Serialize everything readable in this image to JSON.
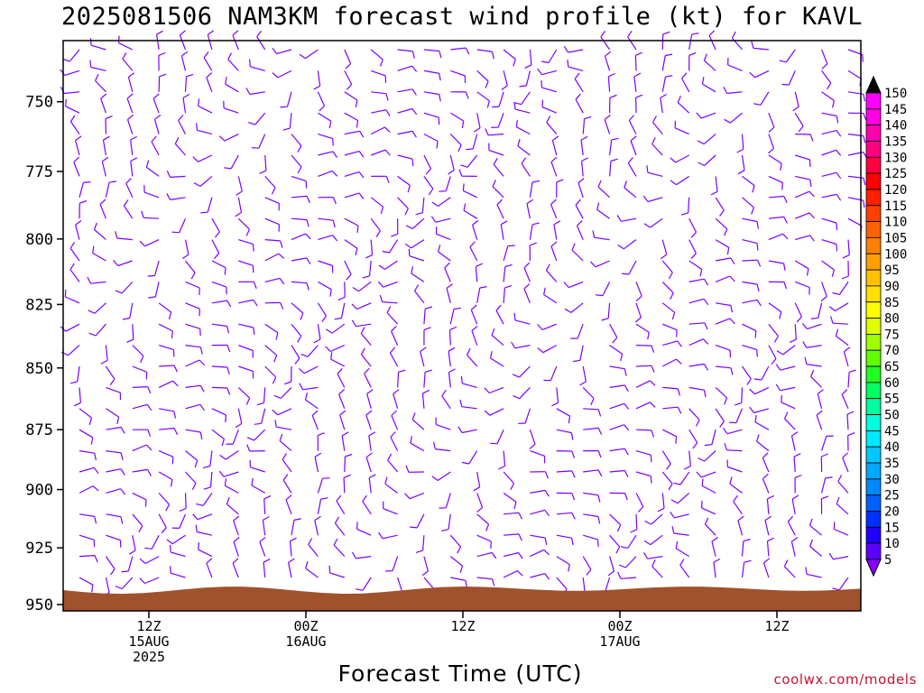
{
  "chart_data": {
    "type": "wind-barb-profile",
    "title": "2025081506 NAM3KM forecast wind profile (kt) for KAVL",
    "xlabel": "Forecast Time (UTC)",
    "ylabel": "",
    "credit": "coolwx.com/models",
    "y_axis": {
      "ticks": [
        750,
        775,
        800,
        825,
        850,
        875,
        900,
        925,
        950
      ],
      "range": [
        730,
        950
      ],
      "scale": "log-pressure",
      "inverted": true
    },
    "x_axis": {
      "ticks": [
        {
          "hour": 6,
          "lines": [
            "12Z",
            "15AUG",
            "2025"
          ]
        },
        {
          "hour": 18,
          "lines": [
            "00Z",
            "16AUG"
          ]
        },
        {
          "hour": 30,
          "lines": [
            "12Z"
          ]
        },
        {
          "hour": 42,
          "lines": [
            "00Z",
            "17AUG"
          ]
        },
        {
          "hour": 54,
          "lines": [
            "12Z"
          ]
        }
      ],
      "range_hours": [
        0,
        60
      ]
    },
    "colorbar": {
      "levels": [
        5,
        10,
        15,
        20,
        25,
        30,
        35,
        40,
        45,
        50,
        55,
        60,
        65,
        70,
        75,
        80,
        85,
        90,
        95,
        100,
        105,
        110,
        115,
        120,
        125,
        130,
        135,
        140,
        145,
        150
      ],
      "colors": [
        "#8a00ff",
        "#5a00ff",
        "#1e00ff",
        "#0030ff",
        "#0060ff",
        "#0088ff",
        "#00a8ff",
        "#00c8ff",
        "#00e8ff",
        "#00ffe0",
        "#00ffa0",
        "#00ff60",
        "#20ff20",
        "#60ff00",
        "#a0ff00",
        "#e0ff00",
        "#ffff00",
        "#ffe000",
        "#ffc000",
        "#ffa000",
        "#ff8000",
        "#ff6000",
        "#ff4000",
        "#ff2000",
        "#ff0000",
        "#ff0040",
        "#ff0080",
        "#ff00b0",
        "#ff00e0",
        "#ff00ff"
      ]
    },
    "terrain_color": "#a0522d",
    "barb_color": "#7b00ff"
  }
}
